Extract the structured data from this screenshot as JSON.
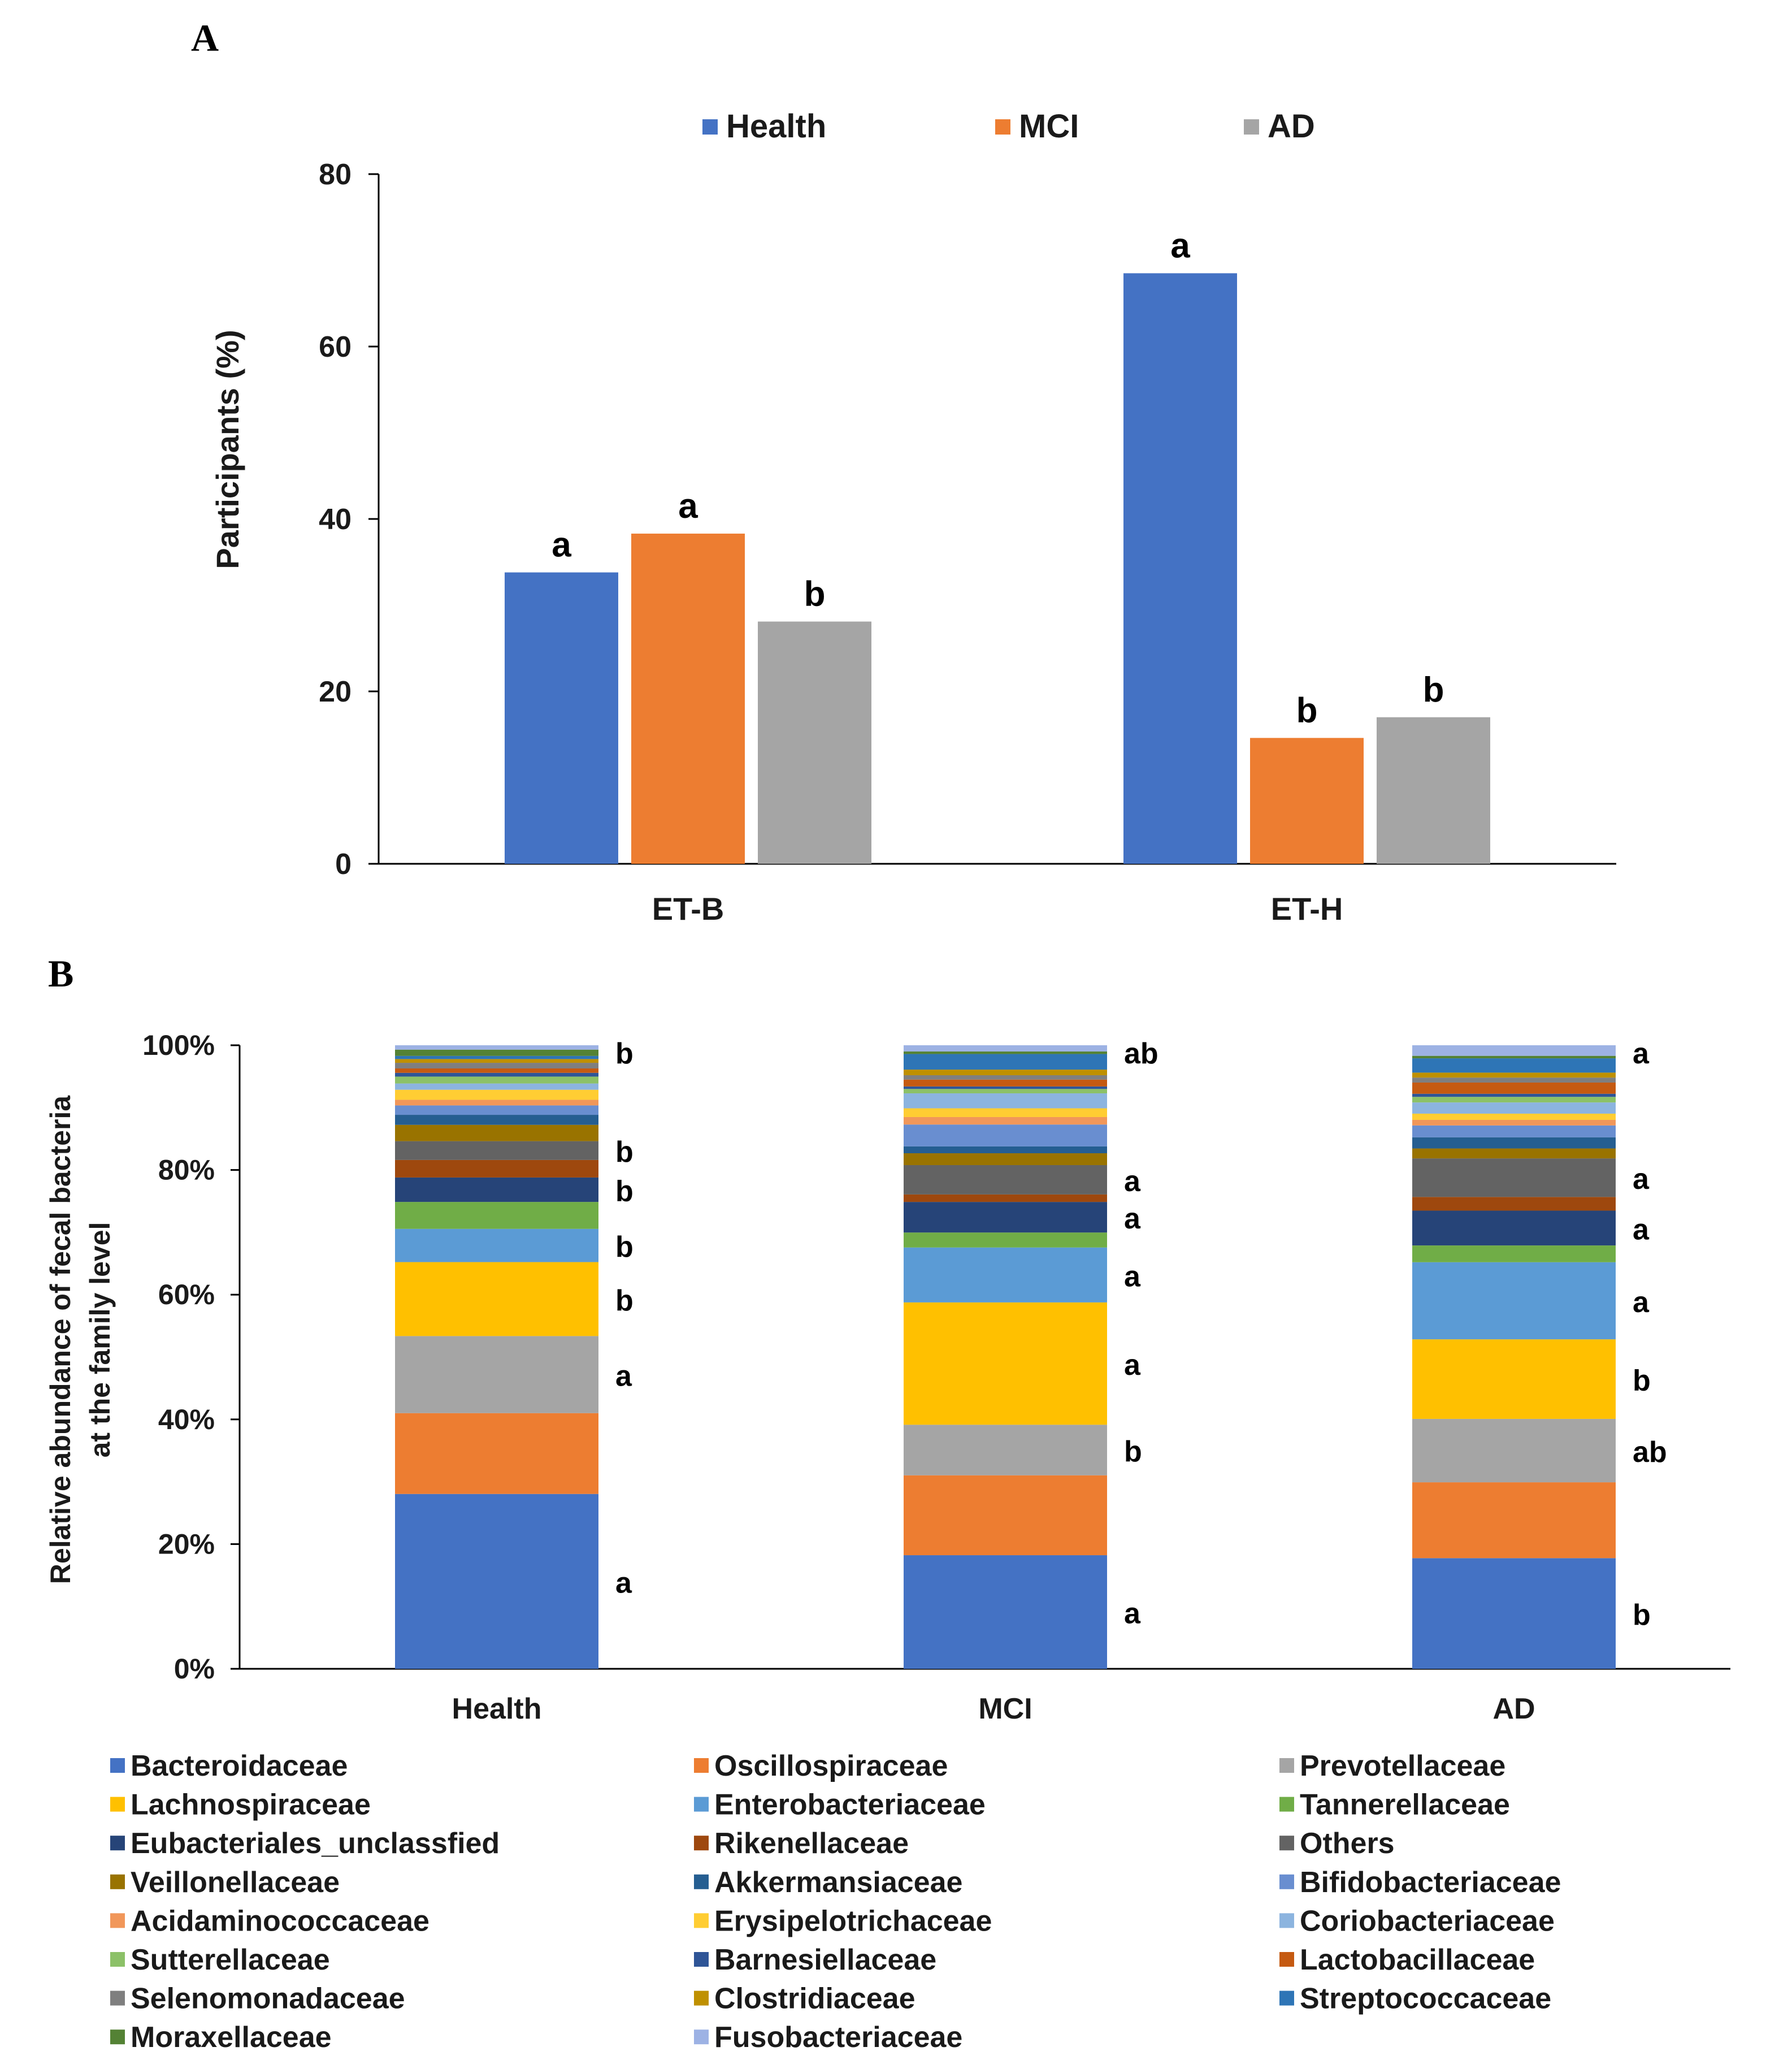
{
  "panel_a_label": "A",
  "panel_b_label": "B",
  "chart_data": [
    {
      "type": "bar",
      "title": "",
      "xlabel": "",
      "ylabel": "Participants (%)",
      "ylim": [
        0,
        80
      ],
      "yticks": [
        "0",
        "20",
        "40",
        "60",
        "80"
      ],
      "categories": [
        "ET-B",
        "ET-H"
      ],
      "legend_position": "top",
      "series": [
        {
          "name": "Health",
          "color": "#4472C4",
          "values": [
            33.8,
            68.5
          ],
          "labels": [
            "a",
            "a"
          ]
        },
        {
          "name": "MCI",
          "color": "#ED7D31",
          "values": [
            38.3,
            14.6
          ],
          "labels": [
            "a",
            "b"
          ]
        },
        {
          "name": "AD",
          "color": "#A5A5A5",
          "values": [
            28.1,
            17.0
          ],
          "labels": [
            "b",
            "b"
          ]
        }
      ]
    },
    {
      "type": "bar",
      "stacked": true,
      "title": "",
      "xlabel": "",
      "ylabel_lines": [
        "Relative abundance of fecal bacteria",
        "at the family level"
      ],
      "ylim": [
        0,
        100
      ],
      "yticks": [
        "0%",
        "20%",
        "40%",
        "60%",
        "80%",
        "100%"
      ],
      "categories": [
        "Health",
        "MCI",
        "AD"
      ],
      "legend_position": "bottom",
      "series": [
        {
          "name": "Bacteroidaceae",
          "color": "#4472C4",
          "values": [
            27.9,
            18.2,
            17.8
          ]
        },
        {
          "name": "Oscillospiraceae",
          "color": "#ED7D31",
          "values": [
            12.9,
            12.8,
            12.2
          ]
        },
        {
          "name": "Prevotellaceae",
          "color": "#A5A5A5",
          "values": [
            12.3,
            8.1,
            10.2
          ]
        },
        {
          "name": "Lachnospiraceae",
          "color": "#FFC000",
          "values": [
            11.8,
            19.6,
            12.8
          ]
        },
        {
          "name": "Enterobacteriaceae",
          "color": "#5B9BD5",
          "values": [
            5.3,
            8.8,
            12.4
          ]
        },
        {
          "name": "Tannerellaceae",
          "color": "#70AD47",
          "values": [
            4.3,
            2.4,
            2.7
          ]
        },
        {
          "name": "Eubacteriales_unclassfied",
          "color": "#264478",
          "values": [
            3.9,
            4.9,
            5.6
          ]
        },
        {
          "name": "Rikenellaceae",
          "color": "#9E480E",
          "values": [
            2.8,
            1.2,
            2.2
          ]
        },
        {
          "name": "Others",
          "color": "#636363",
          "values": [
            3.0,
            4.7,
            6.2
          ]
        },
        {
          "name": "Veillonellaceae",
          "color": "#997300",
          "values": [
            2.6,
            1.9,
            1.6
          ]
        },
        {
          "name": "Akkermansiaceae",
          "color": "#255E91",
          "values": [
            1.6,
            1.1,
            1.8
          ]
        },
        {
          "name": "Bifidobacteriaceae",
          "color": "#698ED0",
          "values": [
            1.5,
            3.5,
            1.9
          ]
        },
        {
          "name": "Acidaminococcaceae",
          "color": "#F1975A",
          "values": [
            0.9,
            1.2,
            0.9
          ]
        },
        {
          "name": "Erysipelotrichaceae",
          "color": "#FFCD33",
          "values": [
            1.6,
            1.4,
            1.0
          ]
        },
        {
          "name": "Coriobacteriaceae",
          "color": "#8CB4DF",
          "values": [
            1.0,
            2.4,
            1.8
          ]
        },
        {
          "name": "Sutterellaceae",
          "color": "#8CC168",
          "values": [
            1.1,
            0.7,
            0.9
          ]
        },
        {
          "name": "Barnesiellaceae",
          "color": "#2F5597",
          "values": [
            0.6,
            0.4,
            0.5
          ]
        },
        {
          "name": "Lactobacillaceae",
          "color": "#C55A11",
          "values": [
            0.7,
            1.1,
            1.8
          ]
        },
        {
          "name": "Selenomonadaceae",
          "color": "#7F7F7F",
          "values": [
            0.9,
            0.7,
            0.8
          ]
        },
        {
          "name": "Clostridiaceae",
          "color": "#BF9000",
          "values": [
            0.6,
            0.9,
            0.8
          ]
        },
        {
          "name": "Streptococcaceae",
          "color": "#2E75B6",
          "values": [
            0.5,
            2.5,
            2.3
          ]
        },
        {
          "name": "Moraxellaceae",
          "color": "#548235",
          "values": [
            1.0,
            0.4,
            0.4
          ]
        },
        {
          "name": "Fusobacteriaceae",
          "color": "#9DB2E4",
          "values": [
            0.7,
            1.0,
            1.7
          ]
        }
      ],
      "significance": [
        {
          "category": "Health",
          "labels": [
            {
              "series": "Bacteroidaceae",
              "text": "a"
            },
            {
              "series": "Prevotellaceae",
              "text": "a"
            },
            {
              "series": "Lachnospiraceae",
              "text": "b"
            },
            {
              "series": "Enterobacteriaceae",
              "text": "b"
            },
            {
              "series": "Eubacteriales_unclassfied",
              "text": "b"
            },
            {
              "series": "Others",
              "text": "b"
            },
            {
              "series": "Streptococcaceae",
              "text": "b"
            }
          ]
        },
        {
          "category": "MCI",
          "labels": [
            {
              "series": "Bacteroidaceae",
              "text": "a"
            },
            {
              "series": "Prevotellaceae",
              "text": "b"
            },
            {
              "series": "Lachnospiraceae",
              "text": "a"
            },
            {
              "series": "Enterobacteriaceae",
              "text": "a"
            },
            {
              "series": "Eubacteriales_unclassfied",
              "text": "a"
            },
            {
              "series": "Others",
              "text": "a"
            },
            {
              "series": "Streptococcaceae",
              "text": "ab"
            }
          ]
        },
        {
          "category": "AD",
          "labels": [
            {
              "series": "Bacteroidaceae",
              "text": "b"
            },
            {
              "series": "Prevotellaceae",
              "text": "ab"
            },
            {
              "series": "Lachnospiraceae",
              "text": "b"
            },
            {
              "series": "Enterobacteriaceae",
              "text": "a"
            },
            {
              "series": "Eubacteriales_unclassfied",
              "text": "a"
            },
            {
              "series": "Others",
              "text": "a"
            },
            {
              "series": "Streptococcaceae",
              "text": "a"
            }
          ]
        }
      ]
    }
  ]
}
